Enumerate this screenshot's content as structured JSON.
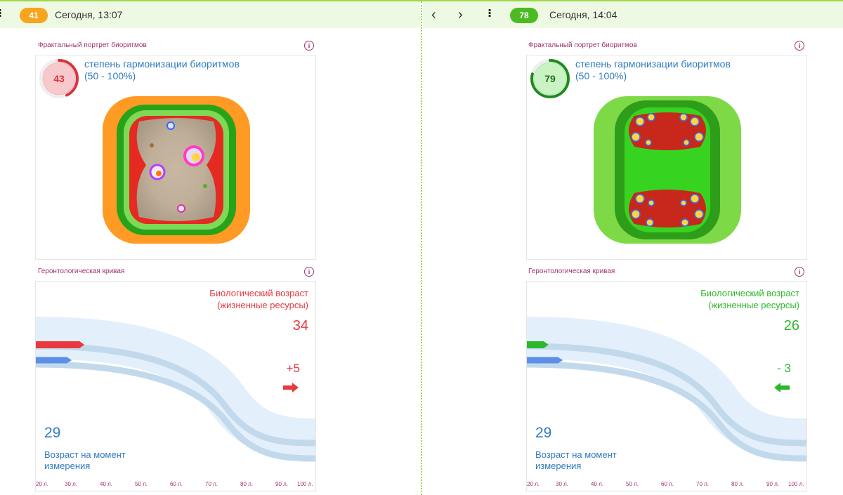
{
  "records": [
    {
      "header": {
        "menu_glyph": "⁝",
        "score": "41",
        "score_color": "#f7a51c",
        "date": "Сегодня, 13:07"
      },
      "fractal": {
        "title": "Фрактальный портрет биоритмов",
        "info": "i",
        "gauge_value": "43",
        "gauge_percent": 43,
        "gauge_color": "#d9343c",
        "harmonization_label": "степень гармонизации биоритмов",
        "harmonization_range": "(50 - 100%)"
      },
      "curve": {
        "title": "Геронтологическая кривая",
        "info": "i",
        "bio_age_title_1": "Биологический возраст",
        "bio_age_title_2": "(жизненные ресурсы)",
        "bio_age": "34",
        "bio_age_numeric": 34,
        "delta": "+5",
        "direction": "right",
        "accent_color": "#e8393f",
        "age_value": "29",
        "age_numeric": 29,
        "age_label_1": "Возраст на момент",
        "age_label_2": "измерения",
        "ticks": [
          "20 л.",
          "30 л.",
          "40 л.",
          "50 л.",
          "60 л.",
          "70 л.",
          "80 л.",
          "90 л.",
          "100 л."
        ]
      }
    },
    {
      "header": {
        "prev": "‹",
        "next": "›",
        "menu_glyph": "⁝",
        "score": "78",
        "score_color": "#4cba21",
        "date": "Сегодня, 14:04"
      },
      "fractal": {
        "title": "Фрактальный портрет биоритмов",
        "info": "i",
        "gauge_value": "79",
        "gauge_percent": 79,
        "gauge_color": "#1f8a1f",
        "harmonization_label": "степень гармонизации биоритмов",
        "harmonization_range": "(50 - 100%)"
      },
      "curve": {
        "title": "Геронтологическая кривая",
        "info": "i",
        "bio_age_title_1": "Биологический возраст",
        "bio_age_title_2": "(жизненные ресурсы)",
        "bio_age": "26",
        "bio_age_numeric": 26,
        "delta": "- 3",
        "direction": "left",
        "accent_color": "#2cb82c",
        "age_value": "29",
        "age_numeric": 29,
        "age_label_1": "Возраст на момент",
        "age_label_2": "измерения",
        "ticks": [
          "20 л.",
          "30 л.",
          "40 л.",
          "50 л.",
          "60 л.",
          "70 л.",
          "80 л.",
          "90 л.",
          "100 л."
        ]
      }
    }
  ],
  "colors": {
    "top_accent": "#9dd84a",
    "link_blue": "#2f7bc0",
    "section_title": "#a03070",
    "age_marker_blue": "#5d8fe8"
  }
}
